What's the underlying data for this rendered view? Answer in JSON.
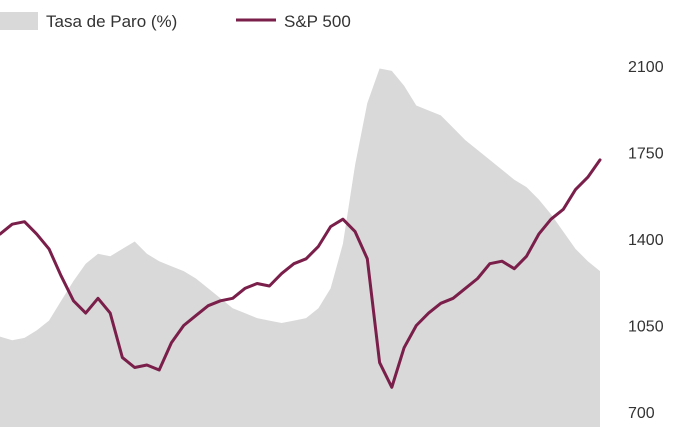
{
  "chart_data": {
    "type": "area",
    "title": "",
    "xlabel": "",
    "ylabel": "",
    "ylim": [
      700,
      2100
    ],
    "yticks": [
      "2100",
      "1750",
      "1400",
      "1050",
      "700"
    ],
    "y_axis_position": "right",
    "legend_position": "top-left",
    "grid": false,
    "x": [
      1,
      2,
      3,
      4,
      5,
      6,
      7,
      8,
      9,
      10,
      11,
      12,
      13,
      14,
      15,
      16,
      17,
      18,
      19,
      20,
      21,
      22,
      23,
      24,
      25,
      26,
      27,
      28,
      29,
      30,
      31,
      32,
      33,
      34,
      35,
      36,
      37,
      38,
      39,
      40,
      41,
      42,
      43,
      44,
      45,
      46,
      47,
      48,
      49,
      50
    ],
    "series": [
      {
        "name": "Tasa de Paro (%)",
        "kind": "area",
        "values": [
          1005,
          990,
          1000,
          1030,
          1070,
          1150,
          1230,
          1300,
          1340,
          1330,
          1360,
          1390,
          1340,
          1310,
          1290,
          1270,
          1240,
          1200,
          1160,
          1120,
          1100,
          1080,
          1070,
          1060,
          1070,
          1080,
          1120,
          1200,
          1380,
          1700,
          1950,
          2090,
          2080,
          2020,
          1940,
          1920,
          1900,
          1850,
          1800,
          1760,
          1720,
          1680,
          1640,
          1610,
          1560,
          1500,
          1430,
          1360,
          1310,
          1270
        ]
      },
      {
        "name": "S&P 500",
        "kind": "line",
        "values": [
          1420,
          1460,
          1470,
          1420,
          1360,
          1250,
          1150,
          1100,
          1160,
          1100,
          920,
          880,
          890,
          870,
          980,
          1050,
          1090,
          1130,
          1150,
          1160,
          1200,
          1220,
          1210,
          1260,
          1300,
          1320,
          1370,
          1450,
          1480,
          1430,
          1320,
          900,
          800,
          960,
          1050,
          1100,
          1140,
          1160,
          1200,
          1240,
          1300,
          1310,
          1280,
          1330,
          1420,
          1480,
          1520,
          1600,
          1650,
          1720
        ]
      }
    ],
    "colors": {
      "area": "#d9d9d9",
      "line": "#7a1f4a",
      "text": "#333333"
    }
  }
}
